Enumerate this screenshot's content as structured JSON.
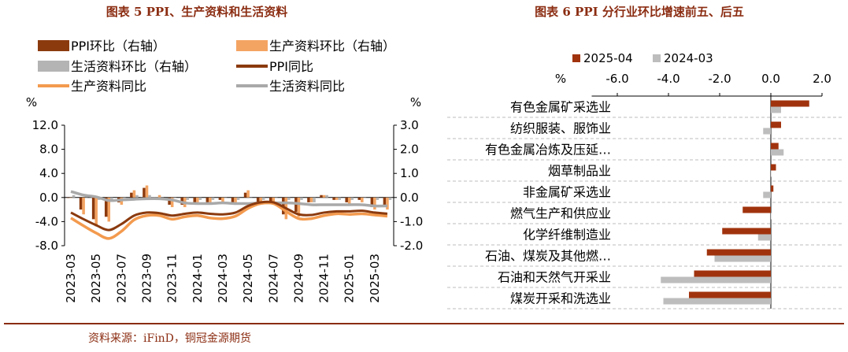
{
  "source": "资料来源：iFinD，铜冠金源期货",
  "colors": {
    "title": "#8B2D12",
    "ppi_mom": "#8B3A0E",
    "prod_mom": "#F4A462",
    "life_mom": "#B4B4B4",
    "ppi_yoy": "#8B3A0E",
    "prod_yoy": "#F39A4E",
    "life_yoy": "#A9A9A9",
    "bar_2025": "#A0330D",
    "bar_2024": "#BDBDBD",
    "footer_line": "#8B2D12"
  },
  "chart_data": [
    {
      "type": "bar+line",
      "title": "图表 5 PPI、生产资料和生活资料",
      "left_unit": "%",
      "right_unit": "%",
      "left_ylim": [
        -8.0,
        12.0
      ],
      "left_ticks": [
        "12.0",
        "8.0",
        "4.0",
        "0.0",
        "-4.0",
        "-8.0"
      ],
      "left_tick_values": [
        12,
        8,
        4,
        0,
        -4,
        -8
      ],
      "right_ylim": [
        -2.0,
        3.0
      ],
      "right_ticks": [
        "3.0",
        "2.0",
        "1.0",
        "0.0",
        "-1.0",
        "-2.0"
      ],
      "right_tick_values": [
        3,
        2,
        1,
        0,
        -1,
        -2
      ],
      "x_labels": [
        "2023-03",
        "2023-05",
        "2023-07",
        "2023-09",
        "2023-11",
        "2024-01",
        "2024-03",
        "2024-05",
        "2024-07",
        "2024-09",
        "2024-11",
        "2025-01",
        "2025-03"
      ],
      "months": [
        "2023-03",
        "2023-04",
        "2023-05",
        "2023-06",
        "2023-07",
        "2023-08",
        "2023-09",
        "2023-10",
        "2023-11",
        "2023-12",
        "2024-01",
        "2024-02",
        "2024-03",
        "2024-04",
        "2024-05",
        "2024-06",
        "2024-07",
        "2024-08",
        "2024-09",
        "2024-10",
        "2024-11",
        "2024-12",
        "2025-01",
        "2025-02",
        "2025-03",
        "2025-04"
      ],
      "legend": [
        "PPI环比（右轴）",
        "生产资料环比（右轴）",
        "生活资料环比（右轴）",
        "PPI同比",
        "生产资料同比",
        "生活资料同比"
      ],
      "series": [
        {
          "name": "PPI环比（右轴）",
          "type": "bar",
          "axis": "right",
          "values": [
            0.0,
            -0.5,
            -0.9,
            -0.8,
            -0.2,
            0.2,
            0.4,
            0.0,
            -0.3,
            -0.3,
            -0.2,
            -0.2,
            -0.1,
            -0.2,
            0.2,
            -0.2,
            -0.2,
            -0.7,
            -0.6,
            -0.2,
            0.1,
            -0.1,
            -0.2,
            -0.1,
            -0.4,
            -0.4
          ]
        },
        {
          "name": "生产资料环比（右轴）",
          "type": "bar",
          "axis": "right",
          "values": [
            0.0,
            -0.7,
            -1.2,
            -1.0,
            -0.3,
            0.3,
            0.5,
            0.1,
            -0.4,
            -0.4,
            -0.3,
            -0.3,
            -0.2,
            -0.3,
            0.3,
            -0.2,
            -0.3,
            -0.9,
            -0.8,
            -0.2,
            0.1,
            -0.1,
            -0.3,
            -0.2,
            -0.5,
            -0.5
          ]
        },
        {
          "name": "生活资料环比（右轴）",
          "type": "bar",
          "axis": "right",
          "values": [
            0.1,
            0.0,
            -0.1,
            -0.1,
            0.0,
            0.1,
            0.1,
            0.0,
            0.0,
            -0.1,
            -0.1,
            -0.1,
            0.0,
            -0.1,
            0.0,
            -0.1,
            0.0,
            -0.1,
            -0.1,
            -0.2,
            0.1,
            -0.1,
            -0.1,
            0.0,
            -0.1,
            -0.1
          ]
        },
        {
          "name": "PPI同比",
          "type": "line",
          "axis": "left",
          "values": [
            -2.5,
            -3.6,
            -4.6,
            -5.4,
            -4.4,
            -3.0,
            -2.5,
            -2.6,
            -3.0,
            -2.7,
            -2.5,
            -2.7,
            -2.8,
            -2.5,
            -1.4,
            -0.8,
            -0.8,
            -1.8,
            -2.8,
            -2.9,
            -2.5,
            -2.3,
            -2.3,
            -2.2,
            -2.5,
            -2.7
          ]
        },
        {
          "name": "生产资料同比",
          "type": "line",
          "axis": "left",
          "values": [
            -3.4,
            -4.7,
            -5.9,
            -6.8,
            -5.6,
            -3.7,
            -3.0,
            -3.0,
            -3.6,
            -3.2,
            -3.0,
            -3.4,
            -3.5,
            -3.1,
            -1.8,
            -1.0,
            -1.0,
            -2.3,
            -3.5,
            -3.5,
            -3.0,
            -2.7,
            -2.8,
            -2.7,
            -2.9,
            -3.1
          ]
        },
        {
          "name": "生活资料同比",
          "type": "line",
          "axis": "left",
          "values": [
            1.0,
            0.4,
            0.1,
            -0.5,
            -0.4,
            -0.3,
            -0.2,
            -0.2,
            -0.4,
            -0.9,
            -1.0,
            -1.0,
            -0.9,
            -1.0,
            -1.0,
            -0.9,
            -0.9,
            -0.9,
            -1.0,
            -1.2,
            -1.2,
            -1.2,
            -1.2,
            -1.2,
            -1.4,
            -1.4
          ]
        }
      ]
    },
    {
      "type": "bar",
      "orientation": "horizontal",
      "title": "图表 6 PPI 分行业环比增速前五、后五",
      "unit": "%",
      "xlim": [
        -7.0,
        2.0
      ],
      "x_ticks": [
        "-6.0",
        "-4.0",
        "-2.0",
        "0.0",
        "2.0"
      ],
      "x_tick_values": [
        -6,
        -4,
        -2,
        0,
        2
      ],
      "legend": [
        "2025-04",
        "2024-03"
      ],
      "categories": [
        "有色金属矿采选业",
        "纺织服装、服饰业",
        "有色金属冶炼及压延…",
        "烟草制品业",
        "非金属矿采选业",
        "燃气生产和供应业",
        "化学纤维制造业",
        "石油、煤炭及其他燃…",
        "石油和天然气开采业",
        "煤炭开采和洗选业"
      ],
      "series": [
        {
          "name": "2025-04",
          "values": [
            1.5,
            0.4,
            0.3,
            0.2,
            0.1,
            -1.1,
            -1.9,
            -2.5,
            -3.0,
            -3.2
          ]
        },
        {
          "name": "2024-03",
          "values": [
            0.4,
            -0.3,
            0.5,
            0.0,
            -0.3,
            0.0,
            -0.5,
            -2.2,
            -4.3,
            -4.2
          ]
        }
      ]
    }
  ]
}
